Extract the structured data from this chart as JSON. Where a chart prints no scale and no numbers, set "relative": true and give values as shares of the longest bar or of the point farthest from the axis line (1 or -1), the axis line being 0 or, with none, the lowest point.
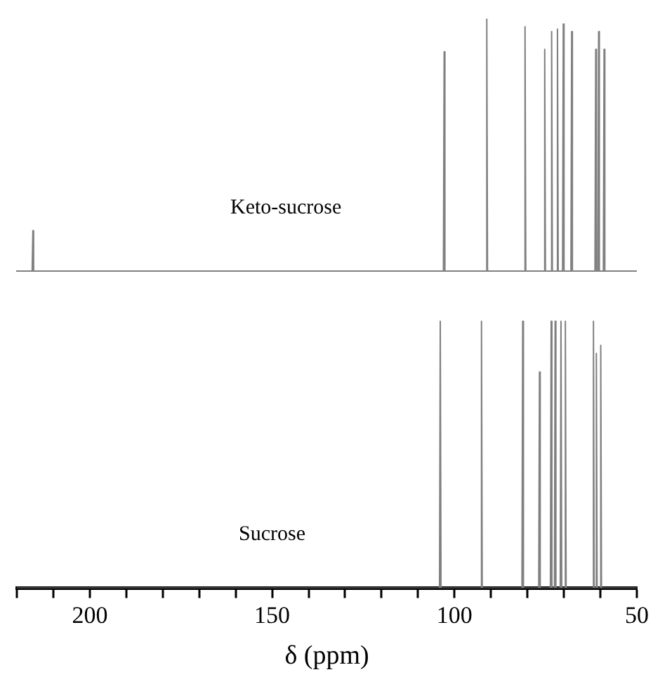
{
  "chart_data": [
    {
      "type": "line",
      "relative": true,
      "xlim": [
        220,
        50
      ],
      "tick_labels": false,
      "grid": false,
      "legend": false,
      "marker": "none",
      "series": [
        {
          "name": "Keto-sucrose",
          "color": "#808080",
          "x": [
            220,
            215.8,
            215.6,
            215.4,
            102.9,
            102.7,
            102.5,
            91.2,
            91.0,
            90.8,
            80.7,
            80.5,
            80.3,
            75.3,
            75.1,
            74.9,
            73.4,
            73.2,
            73.0,
            71.8,
            71.6,
            71.4,
            70.2,
            70.0,
            69.8,
            67.9,
            67.7,
            67.5,
            61.3,
            61.1,
            60.9,
            60.5,
            60.3,
            60.1,
            59.0,
            58.8,
            58.6,
            50
          ],
          "values": [
            0,
            0,
            0.16,
            0,
            0,
            0.87,
            0,
            0,
            1,
            0,
            0,
            0.97,
            0,
            0,
            0.88,
            0,
            0,
            0.95,
            0,
            0,
            0.96,
            0,
            0,
            0.98,
            0,
            0,
            0.95,
            0,
            0,
            0.88,
            0,
            0,
            0.95,
            0,
            0,
            0.88,
            0,
            0
          ]
        }
      ]
    },
    {
      "type": "line",
      "relative": true,
      "xlim": [
        220,
        50
      ],
      "xticks": [
        {
          "value": 220,
          "label": null
        },
        {
          "value": 210,
          "label": null
        },
        200,
        {
          "value": 190,
          "label": null
        },
        {
          "value": 180,
          "label": null
        },
        {
          "value": 170,
          "label": null
        },
        {
          "value": 160,
          "label": null
        },
        150,
        {
          "value": 140,
          "label": null
        },
        {
          "value": 130,
          "label": null
        },
        {
          "value": 120,
          "label": null
        },
        {
          "value": 110,
          "label": null
        },
        100,
        {
          "value": 90,
          "label": null
        },
        {
          "value": 80,
          "label": null
        },
        {
          "value": 70,
          "label": null
        },
        {
          "value": 60,
          "label": null
        },
        50
      ],
      "xlabel": "δ (ppm)",
      "tick_labels": "x",
      "grid": false,
      "legend": false,
      "marker": "none",
      "series": [
        {
          "name": "Sucrose",
          "color": "#808080",
          "x": [
            220,
            104.1,
            103.9,
            103.7,
            92.8,
            92.6,
            92.4,
            81.5,
            81.3,
            81.1,
            76.9,
            76.7,
            76.5,
            73.7,
            73.5,
            73.3,
            72.6,
            72.4,
            72.2,
            71.0,
            70.8,
            70.6,
            69.8,
            69.6,
            69.4,
            62.1,
            61.9,
            61.7,
            61.3,
            61.1,
            60.9,
            60.1,
            59.9,
            59.7,
            50
          ],
          "values": [
            0,
            0,
            1,
            0,
            0,
            1,
            0,
            0,
            1,
            0,
            0,
            0.81,
            0,
            0,
            1,
            0,
            0,
            1,
            0,
            0,
            1,
            0,
            0,
            1,
            0,
            0,
            1,
            0,
            0,
            0.88,
            0,
            0,
            0.91,
            0,
            0
          ]
        }
      ]
    }
  ]
}
